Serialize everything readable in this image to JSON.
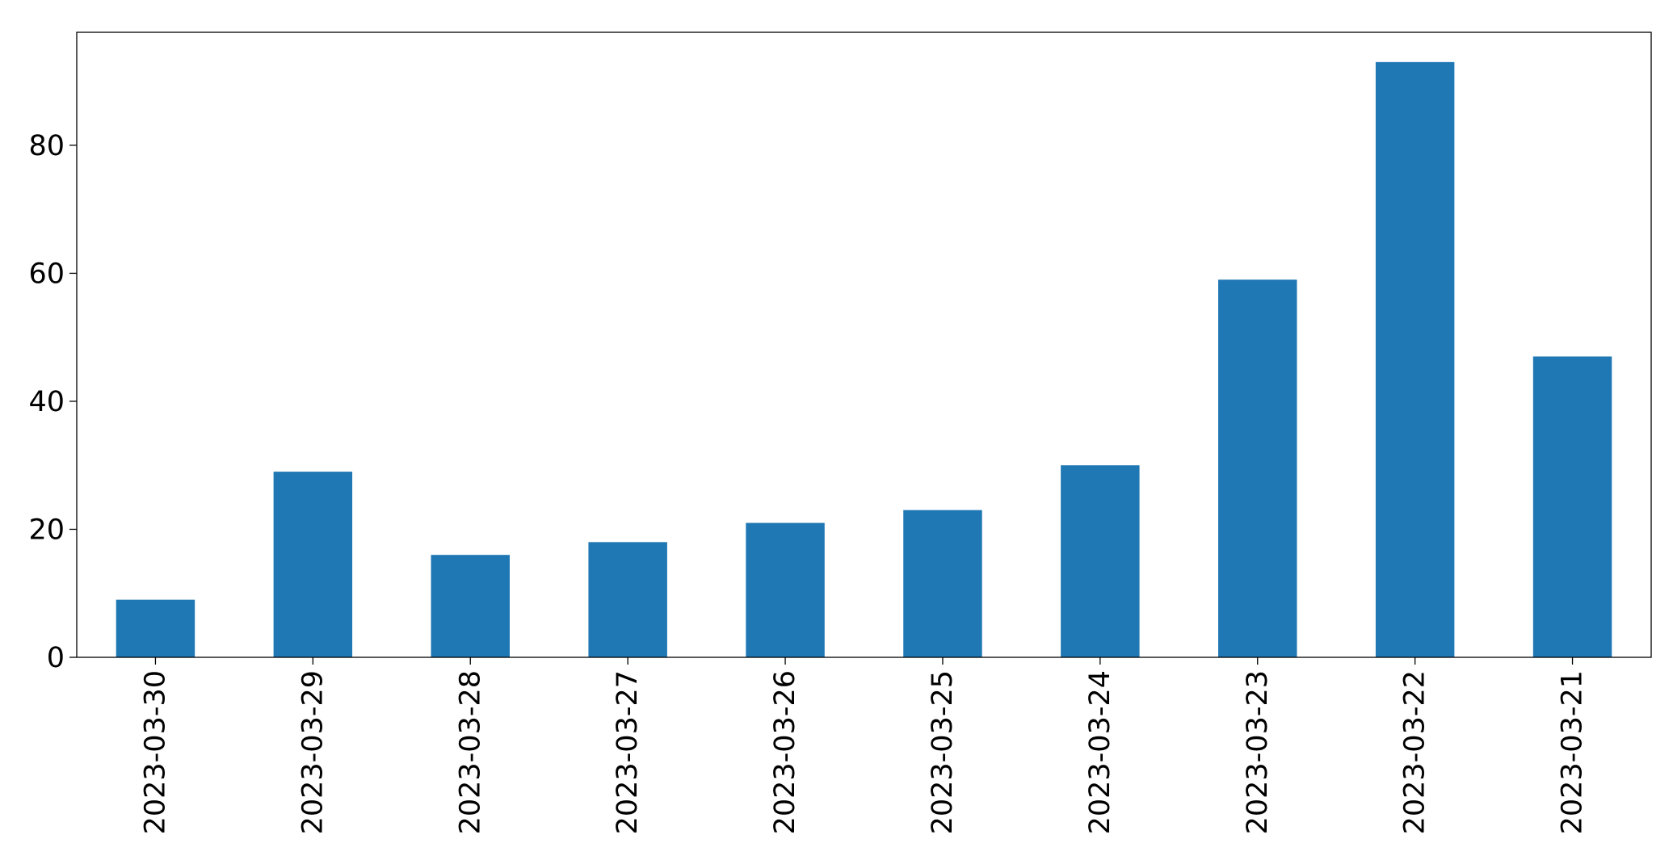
{
  "chart_data": {
    "type": "bar",
    "title": "",
    "xlabel": "",
    "ylabel": "",
    "categories": [
      "2023-03-30",
      "2023-03-29",
      "2023-03-28",
      "2023-03-27",
      "2023-03-26",
      "2023-03-25",
      "2023-03-24",
      "2023-03-23",
      "2023-03-22",
      "2023-03-21"
    ],
    "values": [
      9,
      29,
      16,
      18,
      21,
      23,
      30,
      59,
      93,
      47
    ],
    "ylim": [
      0,
      97.65
    ],
    "yticks": [
      0,
      20,
      40,
      60,
      80
    ],
    "ytick_labels": [
      "0",
      "20",
      "40",
      "60",
      "80"
    ],
    "grid": false,
    "legend": "none",
    "colors": {
      "bar": "#1f77b4",
      "axis": "#000000",
      "background": "#ffffff"
    }
  }
}
